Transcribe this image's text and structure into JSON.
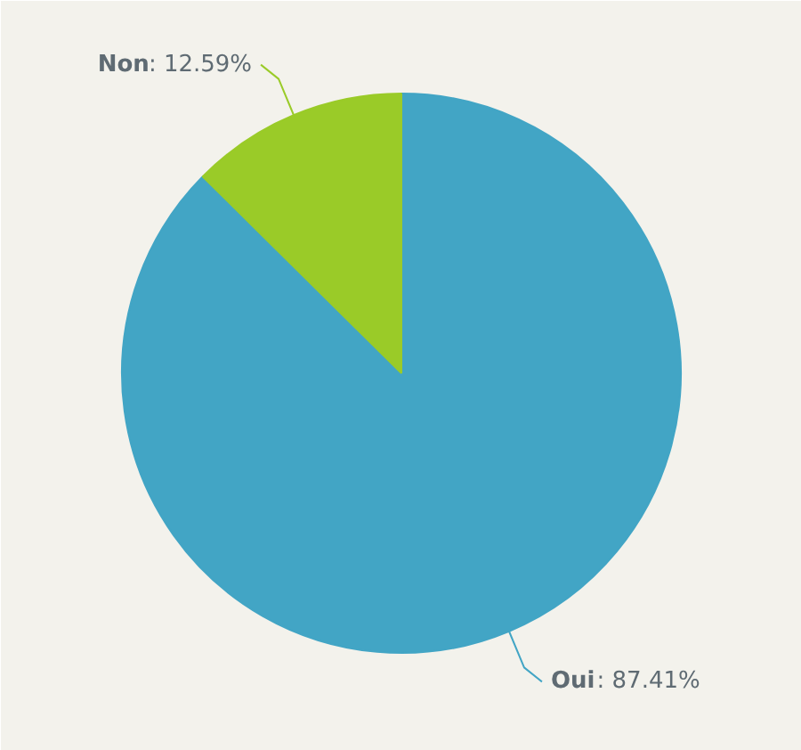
{
  "chart_data": {
    "type": "pie",
    "categories": [
      "Oui",
      "Non"
    ],
    "values": [
      87.41,
      12.59
    ],
    "colors": [
      "#42a5c5",
      "#9acb28"
    ],
    "value_labels": [
      ": 87.41%",
      ": 12.59%"
    ]
  }
}
